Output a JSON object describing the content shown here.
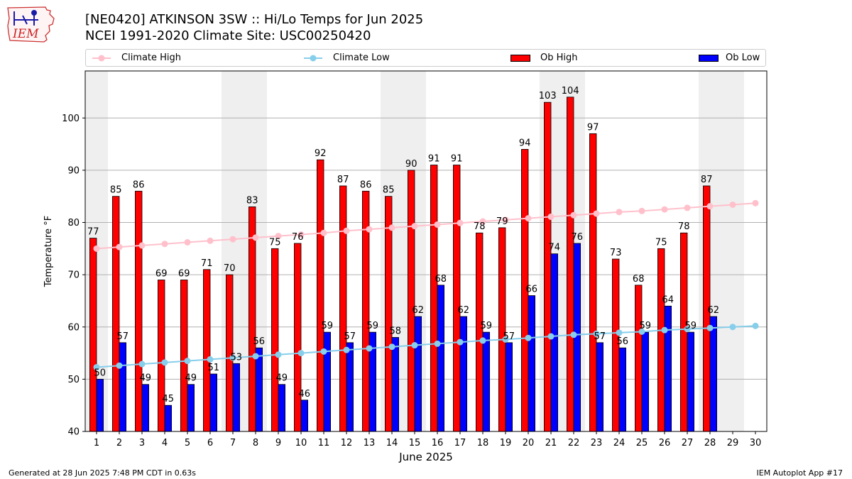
{
  "header": {
    "title_line1": "[NE0420] ATKINSON 3SW :: Hi/Lo Temps for Jun 2025",
    "title_line2": "NCEI 1991-2020 Climate Site: USC00250420"
  },
  "logo": {
    "text": "IEM"
  },
  "legend": {
    "items": [
      {
        "label": "Climate High",
        "color": "#ffc0cb",
        "kind": "line"
      },
      {
        "label": "Climate Low",
        "color": "#87ceeb",
        "kind": "line"
      },
      {
        "label": "Ob High",
        "color": "#ff0000",
        "kind": "bar"
      },
      {
        "label": "Ob Low",
        "color": "#0000ff",
        "kind": "bar"
      }
    ]
  },
  "footer": {
    "generated": "Generated at 28 Jun 2025 7:48 PM CDT in 0.63s",
    "app": "IEM Autoplot App #17"
  },
  "chart_data": {
    "type": "bar",
    "xlabel": "June 2025",
    "ylabel": "Temperature °F",
    "ylim": [
      40,
      109
    ],
    "yticks": [
      40,
      50,
      60,
      70,
      80,
      90,
      100
    ],
    "grid": "horizontal",
    "legend_position": "top",
    "categories": [
      "1",
      "2",
      "3",
      "4",
      "5",
      "6",
      "7",
      "8",
      "9",
      "10",
      "11",
      "12",
      "13",
      "14",
      "15",
      "16",
      "17",
      "18",
      "19",
      "20",
      "21",
      "22",
      "23",
      "24",
      "25",
      "26",
      "27",
      "28",
      "29",
      "30"
    ],
    "weekend_days": [
      1,
      7,
      8,
      14,
      15,
      21,
      22,
      28,
      29
    ],
    "series": [
      {
        "name": "Ob High",
        "kind": "bar",
        "color": "#ff0000",
        "values": [
          77,
          85,
          86,
          69,
          69,
          71,
          70,
          83,
          75,
          76,
          92,
          87,
          86,
          85,
          90,
          91,
          91,
          78,
          79,
          94,
          103,
          104,
          97,
          73,
          68,
          75,
          78,
          87,
          null,
          null
        ]
      },
      {
        "name": "Ob Low",
        "kind": "bar",
        "color": "#0000ff",
        "values": [
          50,
          57,
          49,
          45,
          49,
          51,
          53,
          56,
          49,
          46,
          59,
          57,
          59,
          58,
          62,
          68,
          62,
          59,
          57,
          66,
          74,
          76,
          57,
          56,
          59,
          64,
          59,
          62,
          null,
          null
        ]
      },
      {
        "name": "Climate High",
        "kind": "line",
        "color": "#ffc0cb",
        "values": [
          75.0,
          75.3,
          75.6,
          75.9,
          76.2,
          76.5,
          76.8,
          77.1,
          77.4,
          77.7,
          78.0,
          78.4,
          78.7,
          79.0,
          79.3,
          79.6,
          79.9,
          80.2,
          80.5,
          80.8,
          81.1,
          81.4,
          81.7,
          82.0,
          82.2,
          82.5,
          82.8,
          83.1,
          83.4,
          83.7
        ]
      },
      {
        "name": "Climate Low",
        "kind": "line",
        "color": "#87ceeb",
        "values": [
          52.3,
          52.6,
          52.9,
          53.2,
          53.5,
          53.8,
          54.1,
          54.4,
          54.7,
          55.0,
          55.3,
          55.6,
          55.9,
          56.2,
          56.5,
          56.8,
          57.1,
          57.4,
          57.6,
          57.9,
          58.2,
          58.5,
          58.7,
          58.9,
          59.1,
          59.4,
          59.6,
          59.8,
          60.0,
          60.2
        ]
      }
    ]
  }
}
